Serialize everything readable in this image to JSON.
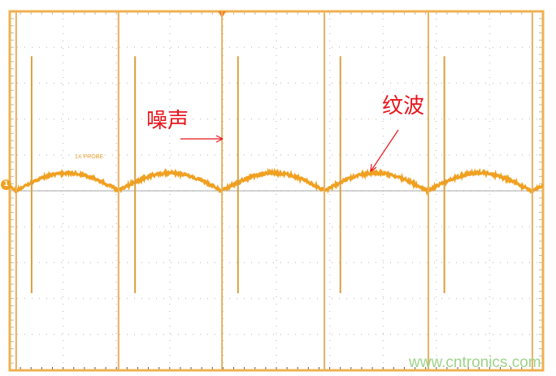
{
  "chart_data": {
    "type": "line",
    "title": "",
    "xlabel": "",
    "ylabel": "",
    "grid": true,
    "x_divisions": 10,
    "y_divisions": 10,
    "xlim": [
      0,
      10
    ],
    "ylim": [
      -5,
      5
    ],
    "ripple_period_div": 1.93,
    "ripple_amplitude_div": 0.5,
    "tall_spike_x_div": [
      0.12,
      2.04,
      3.98,
      5.9,
      7.85,
      9.8
    ],
    "short_spike_x_div": [
      0.41,
      2.35,
      4.28,
      6.2,
      8.15
    ],
    "short_spike_range_div": [
      -2.85,
      3.75
    ],
    "trace_color": "#f0a020",
    "frame_color": "#f0b050"
  },
  "labels": {
    "probe": "1X PROBE",
    "channel": "1",
    "noise": "噪声",
    "ripple": "纹波",
    "watermark": "www.cntronics.com"
  },
  "colors": {
    "annotation": "#e8141b",
    "watermark": "#9fd38a"
  }
}
